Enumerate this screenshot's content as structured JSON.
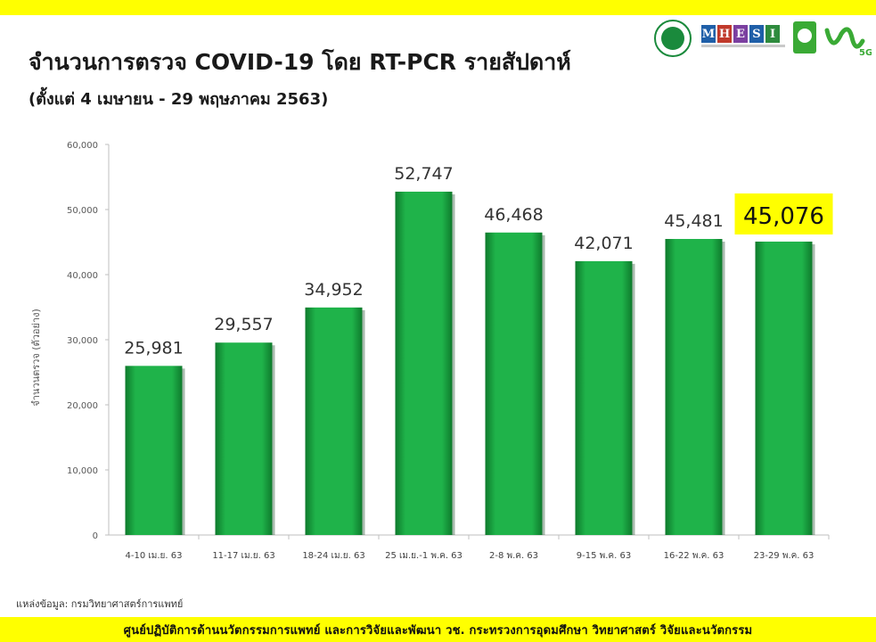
{
  "header": {
    "title": "จำนวนการตรวจ COVID-19 โดย RT-PCR รายสัปดาห์",
    "subtitle": "(ตั้งแต่ 4 เมษายน - 29 พฤษภาคม 2563)"
  },
  "logos": {
    "mhesi_letters": [
      "M",
      "H",
      "E",
      "S",
      "I"
    ],
    "mhesi_colors": [
      "#1f5fa8",
      "#c0392b",
      "#7b3fa0",
      "#1f5fa8",
      "#2e8b3d"
    ],
    "nrct_text": "วช.",
    "anniversary_text": "5G"
  },
  "chart_data": {
    "type": "bar",
    "categories": [
      "4-10 เม.ย. 63",
      "11-17 เม.ย. 63",
      "18-24 เม.ย. 63",
      "25 เม.ย.-1 พ.ค. 63",
      "2-8 พ.ค. 63",
      "9-15 พ.ค. 63",
      "16-22 พ.ค. 63",
      "23-29 พ.ค. 63"
    ],
    "values": [
      25981,
      29557,
      34952,
      52747,
      46468,
      42071,
      45481,
      45076
    ],
    "data_labels": [
      "25,981",
      "29,557",
      "34,952",
      "52,747",
      "46,468",
      "42,071",
      "45,481",
      "45,076"
    ],
    "highlight_index": 7,
    "highlight_color": "#ffff00",
    "bar_color": "#1fb34a",
    "bar_color_dark": "#0e7a2c",
    "ylabel": "จำนวนตรวจ (ตัวอย่าง)",
    "xlabel": "",
    "ylim": [
      0,
      60000
    ],
    "yticks": [
      0,
      10000,
      20000,
      30000,
      40000,
      50000,
      60000
    ],
    "ytick_labels": [
      "0",
      "10,000",
      "20,000",
      "30,000",
      "40,000",
      "50,000",
      "60,000"
    ],
    "grid": false,
    "legend": "none"
  },
  "footer": {
    "source": "แหล่งข้อมูล: กรมวิทยาศาสตร์การแพทย์",
    "credit": "ศูนย์ปฏิบัติการด้านนวัตกรรมการแพทย์  และการวิจัยและพัฒนา    วช.   กระทรวงการอุดมศึกษา  วิทยาศาสตร์  วิจัยและนวัตกรรม"
  }
}
